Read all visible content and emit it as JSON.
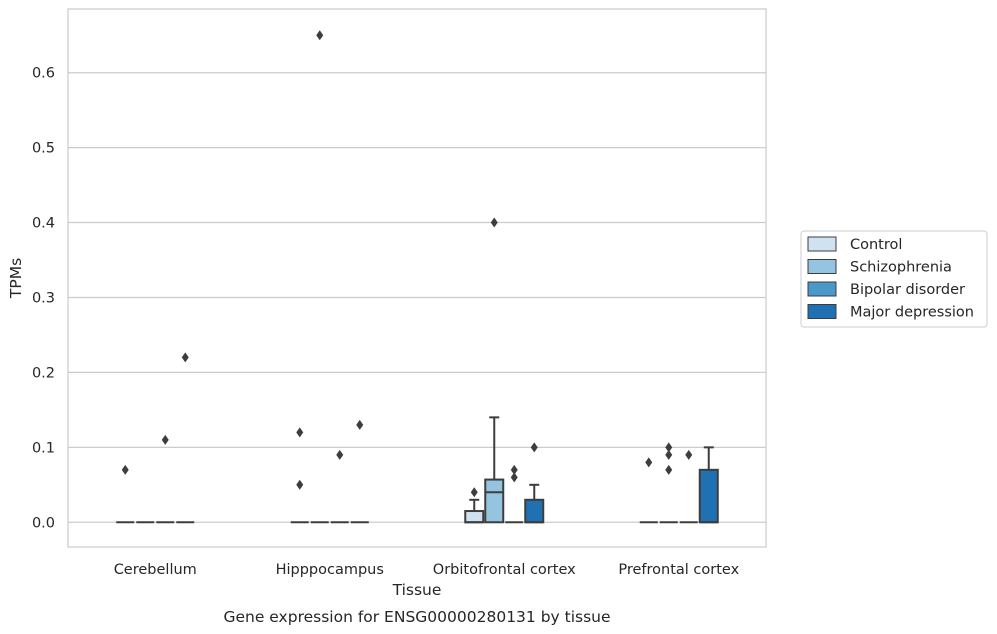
{
  "chart_data": {
    "type": "box",
    "title": "",
    "caption": "Gene expression for ENSG00000280131 by tissue",
    "xlabel": "Tissue",
    "ylabel": "TPMs",
    "ylim": [
      -0.033,
      0.685
    ],
    "yticks": [
      0.0,
      0.1,
      0.2,
      0.3,
      0.4,
      0.5,
      0.6
    ],
    "ytick_labels": [
      "0.0",
      "0.1",
      "0.2",
      "0.3",
      "0.4",
      "0.5",
      "0.6"
    ],
    "grid": "horizontal",
    "legend_position": "right",
    "categories": [
      "Cerebellum",
      "Hipppocampus",
      "Orbitofrontal cortex",
      "Prefrontal cortex"
    ],
    "series": [
      {
        "name": "Control",
        "color": "#d0e1f2",
        "boxes": [
          {
            "q1": 0.0,
            "median": 0.0,
            "q3": 0.0,
            "whisker_low": 0.0,
            "whisker_high": 0.0,
            "outliers": [
              0.07
            ]
          },
          {
            "q1": 0.0,
            "median": 0.0,
            "q3": 0.0,
            "whisker_low": 0.0,
            "whisker_high": 0.0,
            "outliers": [
              0.12,
              0.05
            ]
          },
          {
            "q1": 0.0,
            "median": 0.0,
            "q3": 0.015,
            "whisker_low": 0.0,
            "whisker_high": 0.03,
            "outliers": [
              0.04
            ]
          },
          {
            "q1": 0.0,
            "median": 0.0,
            "q3": 0.0,
            "whisker_low": 0.0,
            "whisker_high": 0.0,
            "outliers": [
              0.08
            ]
          }
        ]
      },
      {
        "name": "Schizophrenia",
        "color": "#94c4df",
        "boxes": [
          {
            "q1": 0.0,
            "median": 0.0,
            "q3": 0.0,
            "whisker_low": 0.0,
            "whisker_high": 0.0,
            "outliers": []
          },
          {
            "q1": 0.0,
            "median": 0.0,
            "q3": 0.0,
            "whisker_low": 0.0,
            "whisker_high": 0.0,
            "outliers": [
              0.65
            ]
          },
          {
            "q1": 0.0,
            "median": 0.04,
            "q3": 0.057,
            "whisker_low": 0.0,
            "whisker_high": 0.14,
            "outliers": [
              0.4
            ]
          },
          {
            "q1": 0.0,
            "median": 0.0,
            "q3": 0.0,
            "whisker_low": 0.0,
            "whisker_high": 0.0,
            "outliers": [
              0.1,
              0.09,
              0.07
            ]
          }
        ]
      },
      {
        "name": "Bipolar disorder",
        "color": "#4a98c9",
        "boxes": [
          {
            "q1": 0.0,
            "median": 0.0,
            "q3": 0.0,
            "whisker_low": 0.0,
            "whisker_high": 0.0,
            "outliers": [
              0.11
            ]
          },
          {
            "q1": 0.0,
            "median": 0.0,
            "q3": 0.0,
            "whisker_low": 0.0,
            "whisker_high": 0.0,
            "outliers": [
              0.09
            ]
          },
          {
            "q1": 0.0,
            "median": 0.0,
            "q3": 0.0,
            "whisker_low": 0.0,
            "whisker_high": 0.0,
            "outliers": [
              0.07,
              0.06
            ]
          },
          {
            "q1": 0.0,
            "median": 0.0,
            "q3": 0.0,
            "whisker_low": 0.0,
            "whisker_high": 0.0,
            "outliers": [
              0.09
            ]
          }
        ]
      },
      {
        "name": "Major depression",
        "color": "#2070b4",
        "boxes": [
          {
            "q1": 0.0,
            "median": 0.0,
            "q3": 0.0,
            "whisker_low": 0.0,
            "whisker_high": 0.0,
            "outliers": [
              0.22
            ]
          },
          {
            "q1": 0.0,
            "median": 0.0,
            "q3": 0.0,
            "whisker_low": 0.0,
            "whisker_high": 0.0,
            "outliers": [
              0.13
            ]
          },
          {
            "q1": 0.0,
            "median": 0.0,
            "q3": 0.03,
            "whisker_low": 0.0,
            "whisker_high": 0.05,
            "outliers": [
              0.1
            ]
          },
          {
            "q1": 0.0,
            "median": 0.0,
            "q3": 0.07,
            "whisker_low": 0.0,
            "whisker_high": 0.1,
            "outliers": []
          }
        ]
      }
    ]
  }
}
